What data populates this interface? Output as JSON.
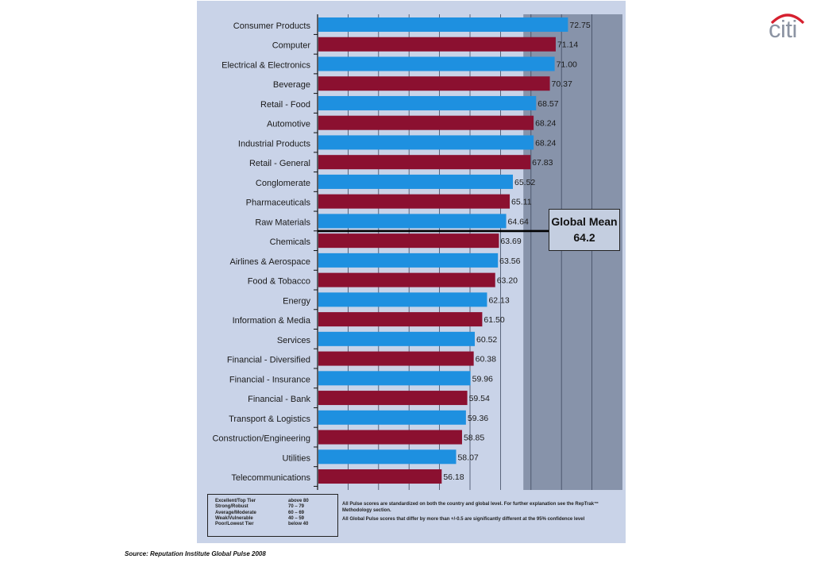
{
  "chart_data": {
    "type": "bar",
    "orientation": "horizontal",
    "categories": [
      "Consumer Products",
      "Computer",
      "Electrical & Electronics",
      "Beverage",
      "Retail - Food",
      "Automotive",
      "Industrial Products",
      "Retail - General",
      "Conglomerate",
      "Pharmaceuticals",
      "Raw Materials",
      "Chemicals",
      "Airlines & Aerospace",
      "Food & Tobacco",
      "Energy",
      "Information & Media",
      "Services",
      "Financial - Diversified",
      "Financial - Insurance",
      "Financial - Bank",
      "Transport & Logistics",
      "Construction/Engineering",
      "Utilities",
      "Telecommunications"
    ],
    "values": [
      72.75,
      71.14,
      71.0,
      70.37,
      68.57,
      68.24,
      68.24,
      67.83,
      65.52,
      65.11,
      64.64,
      63.69,
      63.56,
      63.2,
      62.13,
      61.5,
      60.52,
      60.38,
      59.96,
      59.54,
      59.36,
      58.85,
      58.07,
      56.18
    ],
    "value_labels": [
      "72.75",
      "71.14",
      "71.00",
      "70.37",
      "68.57",
      "68.24",
      "68.24",
      "67.83",
      "65.52",
      "65.11",
      "64.64",
      "63.69",
      "63.56",
      "63.20",
      "62.13",
      "61.50",
      "60.52",
      "60.38",
      "59.96",
      "59.54",
      "59.36",
      "58.85",
      "58.07",
      "56.18"
    ],
    "colors": [
      "#1e90e0",
      "#8b1030"
    ],
    "xlim": [
      40,
      80
    ],
    "grid": true,
    "annotation": {
      "line1": "Global Mean",
      "line2": "64.2",
      "value": 64.2
    }
  },
  "legend": {
    "rows": [
      {
        "tier": "Excellent/Top Tier",
        "range": "above 80"
      },
      {
        "tier": "Strong/Robust",
        "range": "70 – 79"
      },
      {
        "tier": "Average/Moderate",
        "range": "60 – 69"
      },
      {
        "tier": "Weak/Vulnerable",
        "range": "40 – 59"
      },
      {
        "tier": "Poor/Lowest Tier",
        "range": "below 40"
      }
    ]
  },
  "notes": {
    "note1": "All Pulse scores are standardized on both the country and global level.  For further explanation see the RepTrak™ Methodology section.",
    "note2": "All Global Pulse scores that differ by more than +/-0.5 are significantly different at the 95% confidence level"
  },
  "source": "Source: Reputation Institute Global Pulse 2008",
  "logo": {
    "text": "citi",
    "arc_color": "#d6202f",
    "text_color": "#8c94a3"
  }
}
